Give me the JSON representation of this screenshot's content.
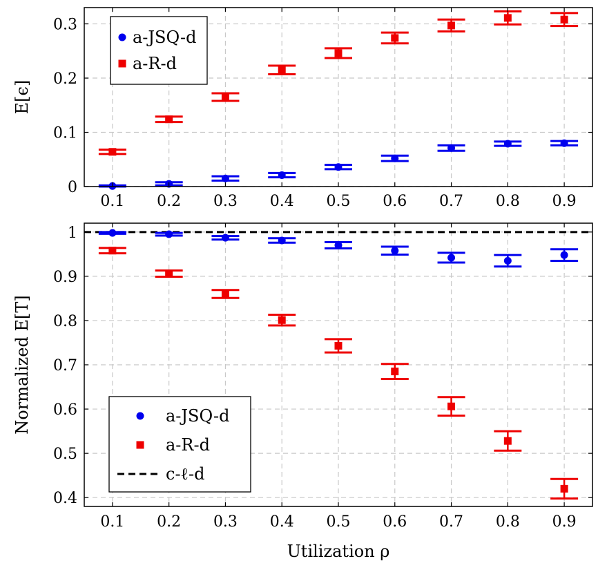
{
  "colors": {
    "jsq": "#0000ee",
    "r": "#ee0000",
    "ref": "#000000"
  },
  "chart_data": [
    {
      "type": "scatter",
      "title": "",
      "xlabel": "",
      "ylabel": "E[ϵ]",
      "xlim": [
        0.05,
        0.95
      ],
      "ylim": [
        0,
        0.33
      ],
      "x_ticks": [
        "0.1",
        "0.2",
        "0.3",
        "0.4",
        "0.5",
        "0.6",
        "0.7",
        "0.8",
        "0.9"
      ],
      "y_ticks": [
        "0",
        "0.1",
        "0.2",
        "0.3"
      ],
      "legend_position": "top-left",
      "legend": [
        "a-JSQ-d",
        "a-R-d"
      ],
      "x": [
        0.1,
        0.2,
        0.3,
        0.4,
        0.5,
        0.6,
        0.7,
        0.8,
        0.9
      ],
      "series": [
        {
          "name": "a-JSQ-d",
          "marker": "circle",
          "values": [
            0.001,
            0.005,
            0.015,
            0.021,
            0.036,
            0.052,
            0.071,
            0.079,
            0.08
          ],
          "err": [
            0.001,
            0.003,
            0.004,
            0.004,
            0.004,
            0.005,
            0.005,
            0.004,
            0.004
          ]
        },
        {
          "name": "a-R-d",
          "marker": "square",
          "values": [
            0.064,
            0.124,
            0.165,
            0.215,
            0.246,
            0.274,
            0.297,
            0.311,
            0.308
          ],
          "err": [
            0.004,
            0.005,
            0.007,
            0.008,
            0.009,
            0.01,
            0.011,
            0.012,
            0.012
          ]
        }
      ]
    },
    {
      "type": "scatter",
      "title": "",
      "xlabel": "Utilization ρ",
      "ylabel": "Normalized E[T]",
      "xlim": [
        0.05,
        0.95
      ],
      "ylim": [
        0.38,
        1.02
      ],
      "x_ticks": [
        "0.1",
        "0.2",
        "0.3",
        "0.4",
        "0.5",
        "0.6",
        "0.7",
        "0.8",
        "0.9"
      ],
      "y_ticks": [
        "0.4",
        "0.5",
        "0.6",
        "0.7",
        "0.8",
        "0.9",
        "1"
      ],
      "legend_position": "bottom-left",
      "legend": [
        "a-JSQ-d",
        "a-R-d",
        "c-ℓ-d"
      ],
      "x": [
        0.1,
        0.2,
        0.3,
        0.4,
        0.5,
        0.6,
        0.7,
        0.8,
        0.9
      ],
      "series": [
        {
          "name": "a-JSQ-d",
          "marker": "circle",
          "values": [
            0.998,
            0.995,
            0.987,
            0.981,
            0.97,
            0.958,
            0.942,
            0.935,
            0.948
          ],
          "err": [
            0.002,
            0.003,
            0.004,
            0.005,
            0.007,
            0.009,
            0.011,
            0.013,
            0.013
          ]
        },
        {
          "name": "a-R-d",
          "marker": "square",
          "values": [
            0.958,
            0.906,
            0.86,
            0.801,
            0.743,
            0.685,
            0.606,
            0.528,
            0.42
          ],
          "err": [
            0.006,
            0.007,
            0.009,
            0.012,
            0.015,
            0.017,
            0.021,
            0.022,
            0.022
          ]
        },
        {
          "name": "c-ℓ-d",
          "style": "dashed-line",
          "y": 1.0
        }
      ]
    }
  ]
}
